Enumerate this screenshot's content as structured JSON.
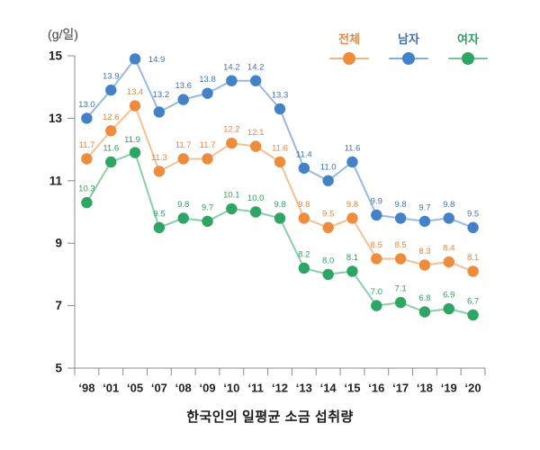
{
  "unit_label": "(g/일)",
  "title": "한국인의 일평균 소금 섭취량",
  "chart_data": {
    "type": "line",
    "title": "한국인의 일평균 소금 섭취량",
    "ylabel": "(g/일)",
    "xlabel": "",
    "ylim": [
      5,
      15
    ],
    "yticks": [
      5,
      7,
      9,
      11,
      13,
      15
    ],
    "grid": false,
    "legend_position": "top-right",
    "categories": [
      "‘98",
      "‘01",
      "‘05",
      "‘07",
      "‘08",
      "‘09",
      "‘10",
      "‘11",
      "‘12",
      "‘13",
      "‘14",
      "‘15",
      "‘16",
      "‘17",
      "‘18",
      "‘19",
      "‘20"
    ],
    "series": [
      {
        "key": "total",
        "name": "전체",
        "color": "#ED8C3C",
        "label_color": "#E9863B",
        "values": [
          11.7,
          12.6,
          13.4,
          11.3,
          11.7,
          11.7,
          12.2,
          12.1,
          11.6,
          9.8,
          9.5,
          9.8,
          8.5,
          8.5,
          8.3,
          8.4,
          8.1
        ]
      },
      {
        "key": "male",
        "name": "남자",
        "color": "#4382C8",
        "label_color": "#4173AE",
        "values": [
          13.0,
          13.9,
          14.9,
          13.2,
          13.6,
          13.8,
          14.2,
          14.2,
          13.3,
          11.4,
          11.0,
          11.6,
          9.9,
          9.8,
          9.7,
          9.8,
          9.5
        ]
      },
      {
        "key": "female",
        "name": "여자",
        "color": "#2EA563",
        "label_color": "#2C9F5F",
        "values": [
          10.3,
          11.6,
          11.9,
          9.5,
          9.8,
          9.7,
          10.1,
          10.0,
          9.8,
          8.2,
          8.0,
          8.1,
          7.0,
          7.1,
          6.8,
          6.9,
          6.7
        ]
      }
    ]
  }
}
